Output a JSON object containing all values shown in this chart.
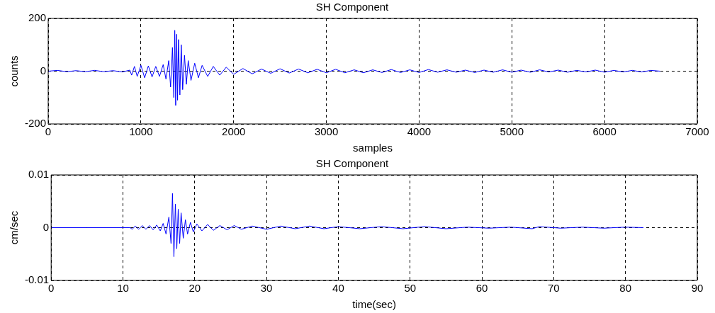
{
  "chart_data": [
    {
      "type": "line",
      "title": "SH Component",
      "xlabel": "samples",
      "ylabel": "counts",
      "xlim": [
        0,
        7000
      ],
      "ylim": [
        -200,
        200
      ],
      "xticks": [
        0,
        1000,
        2000,
        3000,
        4000,
        5000,
        6000,
        7000
      ],
      "yticks": [
        -200,
        0,
        200
      ],
      "grid": true,
      "legend": false,
      "marker": "none",
      "line_style": "solid",
      "x": [
        0,
        100,
        200,
        300,
        400,
        500,
        600,
        700,
        800,
        880,
        900,
        930,
        960,
        1000,
        1040,
        1080,
        1120,
        1160,
        1200,
        1240,
        1270,
        1300,
        1320,
        1340,
        1355,
        1365,
        1375,
        1385,
        1395,
        1405,
        1420,
        1435,
        1450,
        1470,
        1490,
        1510,
        1540,
        1580,
        1620,
        1660,
        1720,
        1780,
        1850,
        1920,
        2000,
        2100,
        2200,
        2300,
        2400,
        2500,
        2600,
        2700,
        2800,
        2900,
        3000,
        3100,
        3200,
        3300,
        3400,
        3500,
        3600,
        3700,
        3800,
        3900,
        4000,
        4100,
        4200,
        4300,
        4400,
        4500,
        4600,
        4700,
        4800,
        4900,
        5000,
        5100,
        5200,
        5300,
        5400,
        5500,
        5600,
        5700,
        5800,
        5900,
        6000,
        6100,
        6200,
        6300,
        6400,
        6500,
        6600
      ],
      "series": [
        {
          "color": "#0000ff",
          "values": [
            0,
            3,
            -2,
            2,
            -2,
            3,
            -2,
            2,
            -3,
            4,
            -15,
            18,
            -20,
            22,
            -25,
            20,
            -22,
            18,
            -20,
            25,
            -30,
            40,
            -60,
            90,
            -100,
            155,
            -130,
            140,
            -110,
            120,
            -90,
            100,
            -70,
            60,
            -50,
            40,
            -35,
            30,
            -25,
            22,
            -20,
            18,
            -15,
            15,
            -12,
            10,
            -10,
            8,
            -8,
            9,
            -7,
            8,
            -6,
            7,
            -6,
            7,
            -6,
            5,
            -6,
            5,
            -5,
            6,
            -5,
            5,
            -5,
            6,
            -4,
            5,
            -4,
            4,
            -5,
            4,
            -4,
            5,
            -4,
            4,
            -4,
            5,
            -3,
            4,
            -4,
            3,
            -3,
            4,
            -4,
            3,
            -3,
            3,
            -3,
            3,
            0
          ]
        }
      ]
    },
    {
      "type": "line",
      "title": "SH Component",
      "xlabel": "time(sec)",
      "ylabel": "cm/sec",
      "xlim": [
        0,
        90
      ],
      "ylim": [
        -0.01,
        0.01
      ],
      "xticks": [
        0,
        10,
        20,
        30,
        40,
        50,
        60,
        70,
        80,
        90
      ],
      "yticks": [
        -0.01,
        0,
        0.01
      ],
      "grid": true,
      "legend": false,
      "marker": "none",
      "line_style": "solid",
      "x": [
        0,
        5,
        10,
        11,
        11.3,
        11.7,
        12.2,
        12.7,
        13.2,
        13.7,
        14.2,
        14.7,
        15.2,
        15.6,
        16,
        16.4,
        16.7,
        16.9,
        17.1,
        17.3,
        17.5,
        17.7,
        17.9,
        18.1,
        18.4,
        18.7,
        19,
        19.4,
        19.8,
        20.3,
        21,
        21.8,
        22.6,
        23.5,
        24.5,
        25.5,
        26.5,
        28,
        30,
        32,
        34,
        36,
        38,
        40,
        43,
        46,
        49,
        52,
        55,
        58,
        61,
        64,
        67,
        68,
        71,
        74,
        77,
        80,
        82.5
      ],
      "series": [
        {
          "color": "#0000ff",
          "values": [
            0,
            0,
            0,
            0,
            -0.0003,
            0.0003,
            -0.0003,
            0.0004,
            -0.0003,
            0.0004,
            -0.0004,
            0.0005,
            -0.0006,
            0.0008,
            -0.0012,
            0.002,
            -0.003,
            0.0065,
            -0.0055,
            0.0045,
            -0.004,
            0.0035,
            -0.003,
            0.0028,
            -0.002,
            0.0015,
            -0.0012,
            0.001,
            -0.0008,
            0.0007,
            -0.0006,
            0.0006,
            -0.0005,
            0.0004,
            -0.0004,
            0.0004,
            -0.0003,
            0.0003,
            -0.0003,
            0.0003,
            -0.0002,
            0.0003,
            -0.0002,
            0.0002,
            -0.0002,
            0.0002,
            -0.0002,
            0.0002,
            -0.0002,
            0.0001,
            -0.0001,
            0.0001,
            -0.0002,
            0.0002,
            -0.0001,
            0.0001,
            -0.0001,
            0.0001,
            0
          ]
        }
      ]
    }
  ]
}
